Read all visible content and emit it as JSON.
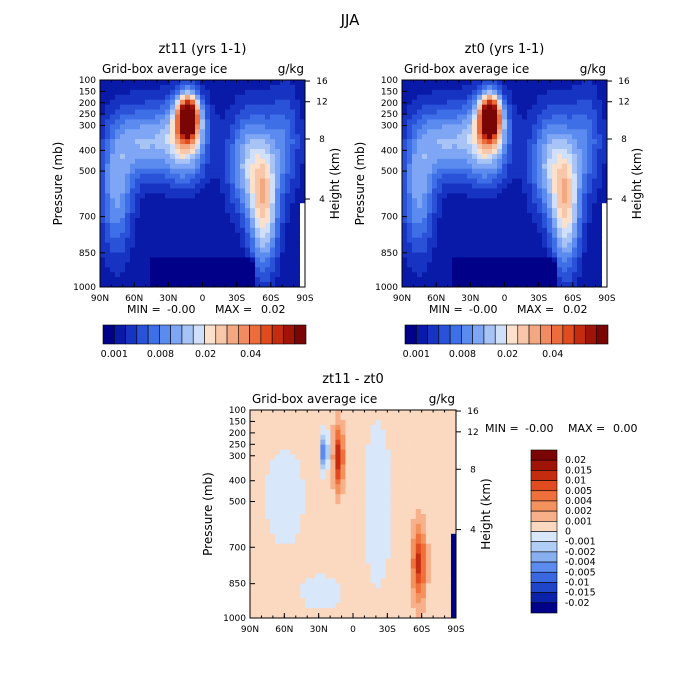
{
  "page_title": "JJA",
  "chart_data": [
    {
      "type": "heatmap",
      "title": "zt11 (yrs 1-1)",
      "subtitle": "Grid-box average ice",
      "units": "g/kg",
      "xlabel": "",
      "ylabel": "Pressure (mb)",
      "y2label": "Height (km)",
      "x_ticks": [
        "90N",
        "60N",
        "30N",
        "0",
        "30S",
        "60S",
        "90S"
      ],
      "y_ticks": [
        "100",
        "150",
        "200",
        "250",
        "300",
        "400",
        "500",
        "700",
        "850",
        "1000"
      ],
      "y2_ticks": [
        "16",
        "12",
        "8",
        "4"
      ],
      "stats": {
        "min_label": "MIN =",
        "min": "-0.00",
        "max_label": "MAX =",
        "max": "0.02"
      },
      "colorbar": {
        "orientation": "horizontal",
        "colors": [
          "#000089",
          "#0a1aa8",
          "#1733c2",
          "#2a52d8",
          "#3f6fe6",
          "#5b8bef",
          "#7ea6f4",
          "#a8c4f7",
          "#d0e0fa",
          "#fbe0cc",
          "#f8c6a8",
          "#f4a882",
          "#f08c60",
          "#ec6c3c",
          "#e04c20",
          "#c42c10",
          "#a01408",
          "#7a0505"
        ],
        "tick_labels": [
          "0.001",
          "0.008",
          "0.02",
          "0.04"
        ]
      },
      "ylim": [
        1000,
        100
      ],
      "xlim": [
        90,
        -90
      ]
    },
    {
      "type": "heatmap",
      "title": "zt0 (yrs 1-1)",
      "subtitle": "Grid-box average ice",
      "units": "g/kg",
      "xlabel": "",
      "ylabel": "Pressure (mb)",
      "y2label": "Height (km)",
      "x_ticks": [
        "90N",
        "60N",
        "30N",
        "0",
        "30S",
        "60S",
        "90S"
      ],
      "y_ticks": [
        "100",
        "150",
        "200",
        "250",
        "300",
        "400",
        "500",
        "700",
        "850",
        "1000"
      ],
      "y2_ticks": [
        "16",
        "12",
        "8",
        "4"
      ],
      "stats": {
        "min_label": "MIN =",
        "min": "-0.00",
        "max_label": "MAX =",
        "max": "0.02"
      },
      "colorbar": {
        "orientation": "horizontal",
        "colors": [
          "#000089",
          "#0a1aa8",
          "#1733c2",
          "#2a52d8",
          "#3f6fe6",
          "#5b8bef",
          "#7ea6f4",
          "#a8c4f7",
          "#d0e0fa",
          "#fbe0cc",
          "#f8c6a8",
          "#f4a882",
          "#f08c60",
          "#ec6c3c",
          "#e04c20",
          "#c42c10",
          "#a01408",
          "#7a0505"
        ],
        "tick_labels": [
          "0.001",
          "0.008",
          "0.02",
          "0.04"
        ]
      },
      "ylim": [
        1000,
        100
      ],
      "xlim": [
        90,
        -90
      ]
    },
    {
      "type": "heatmap",
      "title": "zt11 - zt0",
      "subtitle": "Grid-box average ice",
      "units": "g/kg",
      "xlabel": "",
      "ylabel": "Pressure (mb)",
      "y2label": "Height (km)",
      "x_ticks": [
        "90N",
        "60N",
        "30N",
        "0",
        "30S",
        "60S",
        "90S"
      ],
      "y_ticks": [
        "100",
        "150",
        "200",
        "250",
        "300",
        "400",
        "500",
        "700",
        "850",
        "1000"
      ],
      "y2_ticks": [
        "16",
        "12",
        "8",
        "4"
      ],
      "stats": {
        "min_label": "MIN =",
        "min": "-0.00",
        "max_label": "MAX =",
        "max": "0.00"
      },
      "colorbar": {
        "orientation": "vertical",
        "colors": [
          "#7a0505",
          "#a01408",
          "#c42c10",
          "#e04c20",
          "#f0703c",
          "#f4925e",
          "#f7b08a",
          "#fbd8c0",
          "#d8e8fa",
          "#b0cdf6",
          "#88aff0",
          "#5b8bef",
          "#3a68e0",
          "#1f45c8",
          "#0c22a8",
          "#000089"
        ],
        "tick_labels": [
          "0.02",
          "0.015",
          "0.01",
          "0.005",
          "0.004",
          "0.002",
          "0.001",
          "0",
          "-0.001",
          "-0.002",
          "-0.004",
          "-0.005",
          "-0.01",
          "-0.015",
          "-0.02"
        ]
      },
      "ylim": [
        1000,
        100
      ],
      "xlim": [
        90,
        -90
      ]
    }
  ]
}
